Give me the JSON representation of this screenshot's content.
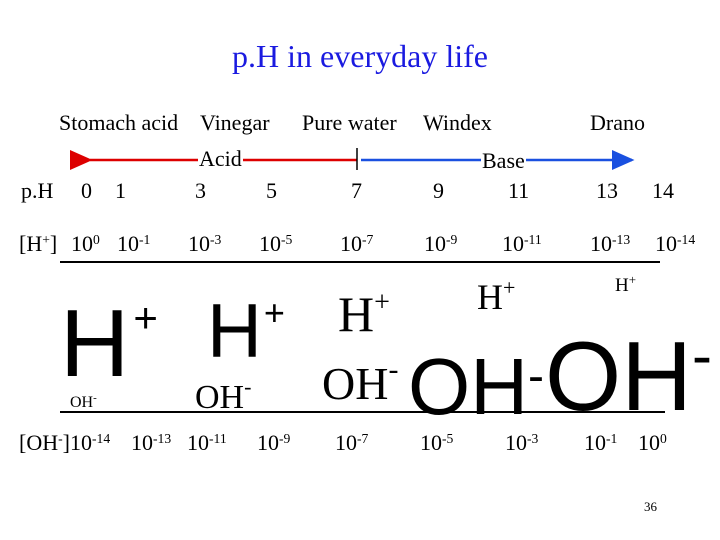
{
  "title": "p.H in everyday life",
  "substances": {
    "stomach_acid": "Stomach acid",
    "vinegar": "Vinegar",
    "pure_water": "Pure water",
    "windex": "Windex",
    "drano": "Drano"
  },
  "scale": {
    "acid_label": "Acid",
    "base_label": "Base",
    "ph_label": "p.H",
    "ph_values": [
      "0",
      "1",
      "3",
      "5",
      "7",
      "9",
      "11",
      "13",
      "14"
    ],
    "h_label_base": "[H",
    "h_label_sup": "+",
    "h_label_end": "]",
    "h_conc": [
      {
        "base": "10",
        "exp": "0"
      },
      {
        "base": "10",
        "exp": "-1"
      },
      {
        "base": "10",
        "exp": "-3"
      },
      {
        "base": "10",
        "exp": "-5"
      },
      {
        "base": "10",
        "exp": "-7"
      },
      {
        "base": "10",
        "exp": "-9"
      },
      {
        "base": "10",
        "exp": "-11"
      },
      {
        "base": "10",
        "exp": "-13"
      },
      {
        "base": "10",
        "exp": "-14"
      }
    ],
    "oh_label_base": "[OH",
    "oh_label_sup": "-",
    "oh_label_end": "]",
    "oh_conc": [
      {
        "base": "10",
        "exp": "-14"
      },
      {
        "base": "10",
        "exp": "-13"
      },
      {
        "base": "10",
        "exp": "-11"
      },
      {
        "base": "10",
        "exp": "-9"
      },
      {
        "base": "10",
        "exp": "-7"
      },
      {
        "base": "10",
        "exp": "-5"
      },
      {
        "base": "10",
        "exp": "-3"
      },
      {
        "base": "10",
        "exp": "-1"
      },
      {
        "base": "10",
        "exp": "0"
      }
    ]
  },
  "ions": {
    "h": "H",
    "h_charge": "+",
    "oh": "OH",
    "oh_charge": "-"
  },
  "colors": {
    "title": "#1a1ae0",
    "acid_arrow": "#dd0000",
    "base_arrow": "#1a50e0"
  },
  "slide_number": "36"
}
